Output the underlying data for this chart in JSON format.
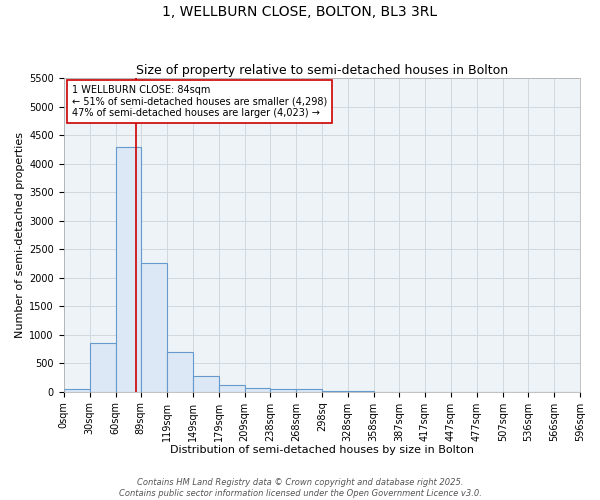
{
  "title": "1, WELLBURN CLOSE, BOLTON, BL3 3RL",
  "subtitle": "Size of property relative to semi-detached houses in Bolton",
  "xlabel": "Distribution of semi-detached houses by size in Bolton",
  "ylabel": "Number of semi-detached properties",
  "bin_edges": [
    0,
    30,
    60,
    89,
    119,
    149,
    179,
    209,
    238,
    268,
    298,
    328,
    358,
    387,
    417,
    447,
    477,
    507,
    536,
    566,
    596
  ],
  "bar_heights": [
    50,
    850,
    4300,
    2250,
    700,
    270,
    120,
    65,
    55,
    40,
    15,
    5,
    3,
    2,
    1,
    1,
    0,
    0,
    0,
    0
  ],
  "bar_color": "#dce8f5",
  "bar_edgecolor": "#6699cc",
  "bar_linewidth": 0.8,
  "ylim": [
    0,
    5500
  ],
  "yticks": [
    0,
    500,
    1000,
    1500,
    2000,
    2500,
    3000,
    3500,
    4000,
    4500,
    5000,
    5500
  ],
  "tick_labels": [
    "0sqm",
    "30sqm",
    "60sqm",
    "89sqm",
    "119sqm",
    "149sqm",
    "179sqm",
    "209sqm",
    "238sqm",
    "268sqm",
    "298sq",
    "328sqm",
    "358sqm",
    "387sqm",
    "417sqm",
    "447sqm",
    "477sqm",
    "507sqm",
    "536sqm",
    "566sqm",
    "596sqm"
  ],
  "property_line_x": 84,
  "property_line_color": "#cc0000",
  "annotation_line1": "1 WELLBURN CLOSE: 84sqm",
  "annotation_line2": "← 51% of semi-detached houses are smaller (4,298)",
  "annotation_line3": "47% of semi-detached houses are larger (4,023) →",
  "annotation_box_color": "#ffffff",
  "annotation_box_edgecolor": "#cc0000",
  "footer_line1": "Contains HM Land Registry data © Crown copyright and database right 2025.",
  "footer_line2": "Contains public sector information licensed under the Open Government Licence v3.0.",
  "plot_bg_color": "#eef3f8",
  "fig_bg_color": "#ffffff",
  "grid_color": "#d0d8e0",
  "title_fontsize": 10,
  "subtitle_fontsize": 9,
  "axis_label_fontsize": 8,
  "tick_fontsize": 7,
  "annotation_fontsize": 7,
  "footer_fontsize": 6
}
